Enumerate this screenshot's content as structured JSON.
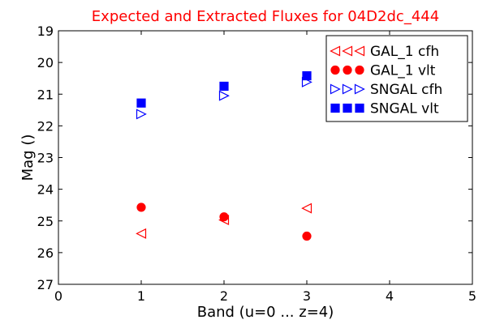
{
  "chart_data": {
    "type": "scatter",
    "title": "Expected and Extracted Fluxes for 04D2dc_444",
    "title_color": "#ff0000",
    "xlabel": "Band (u=0 ... z=4)",
    "ylabel": "Mag ()",
    "xlim": [
      0,
      5
    ],
    "ylim": [
      19,
      27
    ],
    "y_inverted": true,
    "grid": false,
    "xticks": [
      "0",
      "1",
      "2",
      "3",
      "4",
      "5"
    ],
    "yticks": [
      "19",
      "20",
      "21",
      "22",
      "23",
      "24",
      "25",
      "26",
      "27"
    ],
    "legend_position": "top-right",
    "series": [
      {
        "name": "GAL_1 cfh",
        "marker": "triangle-left",
        "filled": false,
        "color": "#ff0000",
        "points": [
          {
            "x": 1,
            "y": 25.4
          },
          {
            "x": 2,
            "y": 24.97
          },
          {
            "x": 3,
            "y": 24.6
          }
        ]
      },
      {
        "name": "GAL_1 vlt",
        "marker": "circle",
        "filled": true,
        "color": "#ff0000",
        "points": [
          {
            "x": 1,
            "y": 24.57
          },
          {
            "x": 2,
            "y": 24.87
          },
          {
            "x": 3,
            "y": 25.48
          }
        ]
      },
      {
        "name": "SNGAL cfh",
        "marker": "triangle-right",
        "filled": false,
        "color": "#0000ff",
        "points": [
          {
            "x": 1,
            "y": 21.63
          },
          {
            "x": 2,
            "y": 21.05
          },
          {
            "x": 3,
            "y": 20.62
          }
        ]
      },
      {
        "name": "SNGAL vlt",
        "marker": "square",
        "filled": true,
        "color": "#0000ff",
        "points": [
          {
            "x": 1,
            "y": 21.28
          },
          {
            "x": 2,
            "y": 20.75
          },
          {
            "x": 3,
            "y": 20.42
          }
        ]
      }
    ]
  }
}
